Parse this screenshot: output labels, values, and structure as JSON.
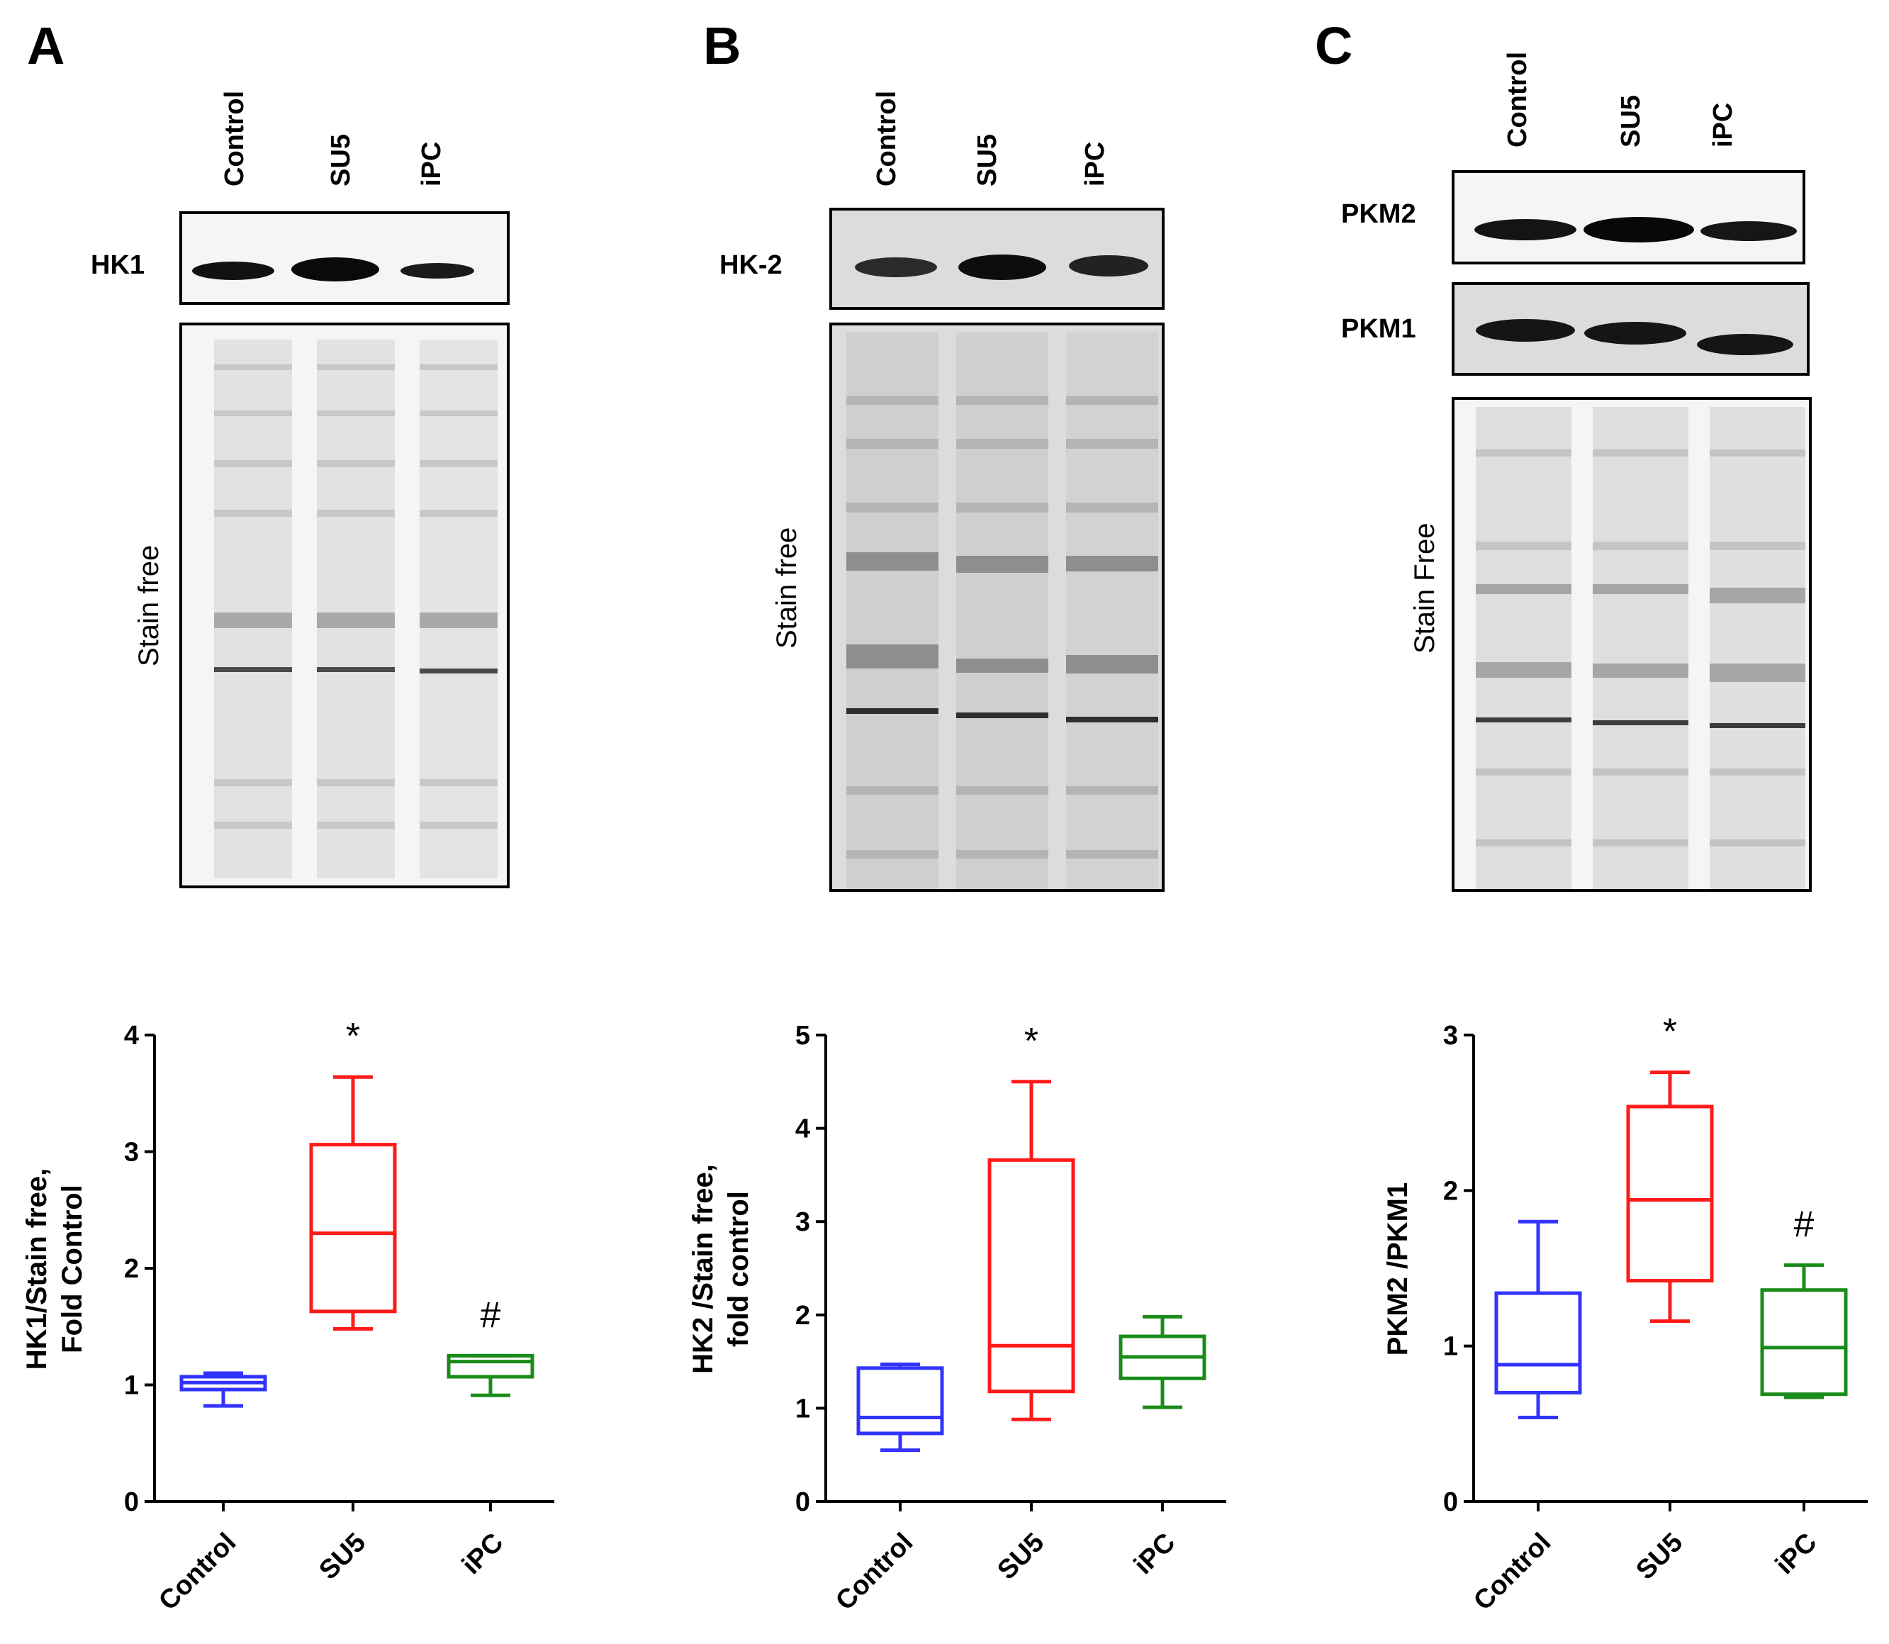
{
  "panels": [
    {
      "letter": "A",
      "lanes": [
        "Control",
        "SU5",
        "iPC"
      ],
      "bands": [
        "HK1"
      ],
      "stain_label": "Stain free"
    },
    {
      "letter": "B",
      "lanes": [
        "Control",
        "SU5",
        "iPC"
      ],
      "bands": [
        "HK-2"
      ],
      "stain_label": "Stain free"
    },
    {
      "letter": "C",
      "lanes": [
        "Control",
        "SU5",
        "iPC"
      ],
      "bands": [
        "PKM2",
        "PKM1"
      ],
      "stain_label": "Stain Free"
    }
  ],
  "colors": {
    "Control": "#3333ff",
    "SU5": "#ff1a1a",
    "iPC": "#1a8c1a"
  },
  "chart_data": [
    {
      "type": "box",
      "ylabel_lines": [
        "HK1/Stain free,",
        "Fold Control"
      ],
      "ylim": [
        0,
        4
      ],
      "yticks": [
        0,
        1,
        2,
        3,
        4
      ],
      "categories": [
        "Control",
        "SU5",
        "iPC"
      ],
      "boxes": [
        {
          "name": "Control",
          "min": 0.82,
          "q1": 0.96,
          "median": 1.02,
          "q3": 1.07,
          "max": 1.1
        },
        {
          "name": "SU5",
          "min": 1.48,
          "q1": 1.63,
          "median": 2.3,
          "q3": 3.06,
          "max": 3.64
        },
        {
          "name": "iPC",
          "min": 0.91,
          "q1": 1.07,
          "median": 1.2,
          "q3": 1.25,
          "max": 1.25
        }
      ],
      "annotations": [
        {
          "category": "SU5",
          "text": "*"
        },
        {
          "category": "iPC",
          "text": "#"
        }
      ]
    },
    {
      "type": "box",
      "ylabel_lines": [
        "HK2 /Stain free,",
        "fold control"
      ],
      "ylim": [
        0,
        5
      ],
      "yticks": [
        0,
        1,
        2,
        3,
        4,
        5
      ],
      "categories": [
        "Control",
        "SU5",
        "iPC"
      ],
      "boxes": [
        {
          "name": "Control",
          "min": 0.55,
          "q1": 0.73,
          "median": 0.9,
          "q3": 1.43,
          "max": 1.47
        },
        {
          "name": "SU5",
          "min": 0.88,
          "q1": 1.18,
          "median": 1.67,
          "q3": 3.66,
          "max": 4.5
        },
        {
          "name": "iPC",
          "min": 1.01,
          "q1": 1.32,
          "median": 1.55,
          "q3": 1.77,
          "max": 1.98
        }
      ],
      "annotations": [
        {
          "category": "SU5",
          "text": "*"
        }
      ]
    },
    {
      "type": "box",
      "ylabel_lines": [
        "PKM2 /PKM1"
      ],
      "ylim": [
        0,
        3
      ],
      "yticks": [
        0,
        1,
        2,
        3
      ],
      "categories": [
        "Control",
        "SU5",
        "iPC"
      ],
      "boxes": [
        {
          "name": "Control",
          "min": 0.54,
          "q1": 0.7,
          "median": 0.88,
          "q3": 1.34,
          "max": 1.8
        },
        {
          "name": "SU5",
          "min": 1.16,
          "q1": 1.42,
          "median": 1.94,
          "q3": 2.54,
          "max": 2.76
        },
        {
          "name": "iPC",
          "min": 0.67,
          "q1": 0.69,
          "median": 0.99,
          "q3": 1.36,
          "max": 1.52
        }
      ],
      "annotations": [
        {
          "category": "SU5",
          "text": "*"
        },
        {
          "category": "iPC",
          "text": "#"
        }
      ]
    }
  ]
}
